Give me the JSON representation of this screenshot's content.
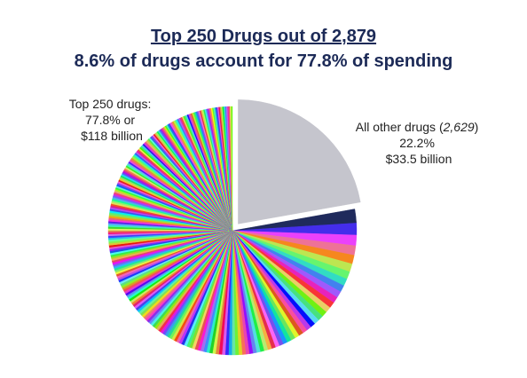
{
  "chart_data": {
    "type": "pie",
    "title": "Top 250 Drugs out of 2,879",
    "subtitle": "8.6% of drugs account for 77.8% of spending",
    "slices": [
      {
        "name": "All other drugs (2,629)",
        "percent": 22.2,
        "amount": "$33.5 billion",
        "color": "#c5c5cd",
        "exploded": true
      },
      {
        "name": "Top 250 drugs",
        "percent": 77.8,
        "amount": "$118 billion",
        "drug_count": 250,
        "multicolor": true
      }
    ],
    "annotations": {
      "top250": {
        "line1": "Top 250 drugs:",
        "line2": "77.8% or",
        "line3": "$118 billion"
      },
      "others": {
        "line1_prefix": "All other drugs (",
        "line1_count": "2,629",
        "line1_suffix": ")",
        "line2": "22.2%",
        "line3": "$33.5 billion"
      }
    }
  }
}
